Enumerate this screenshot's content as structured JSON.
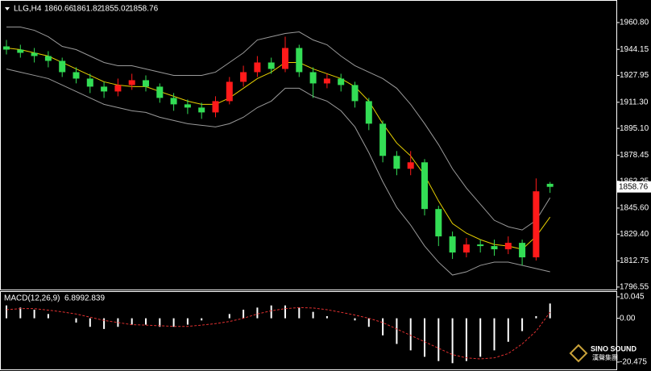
{
  "chart_data": [
    {
      "type": "candlestick",
      "title": "LLG,H4",
      "open": [
        1946,
        1944,
        1942,
        1940,
        1937,
        1930,
        1926,
        1921,
        1918,
        1922,
        1925,
        1921,
        1914,
        1910,
        1908,
        1905,
        1912,
        1924,
        1930,
        1936,
        1932,
        1945,
        1930,
        1923,
        1926,
        1922,
        1912,
        1898,
        1878,
        1870,
        1874,
        1845,
        1828,
        1818,
        1823,
        1822,
        1820,
        1824,
        1815,
        1860.66
      ],
      "high": [
        1950,
        1947,
        1945,
        1943,
        1939,
        1933,
        1929,
        1924,
        1926,
        1929,
        1928,
        1923,
        1917,
        1913,
        1911,
        1915,
        1927,
        1934,
        1940,
        1939,
        1952,
        1947,
        1933,
        1929,
        1929,
        1924,
        1914,
        1900,
        1881,
        1881,
        1876,
        1847,
        1831,
        1827,
        1826,
        1826,
        1828,
        1826,
        1864,
        1861.82
      ],
      "low": [
        1941,
        1939,
        1936,
        1933,
        1927,
        1923,
        1917,
        1914,
        1915,
        1919,
        1918,
        1911,
        1906,
        1904,
        1901,
        1902,
        1910,
        1921,
        1927,
        1929,
        1930,
        1927,
        1914,
        1920,
        1918,
        1908,
        1894,
        1874,
        1866,
        1866,
        1841,
        1822,
        1814,
        1815,
        1818,
        1816,
        1817,
        1810,
        1813,
        1855.02
      ],
      "close": [
        1944,
        1942,
        1940,
        1937,
        1930,
        1926,
        1921,
        1918,
        1922,
        1925,
        1921,
        1914,
        1910,
        1908,
        1905,
        1912,
        1924,
        1930,
        1936,
        1932,
        1945,
        1930,
        1923,
        1926,
        1922,
        1912,
        1898,
        1878,
        1870,
        1874,
        1845,
        1828,
        1818,
        1823,
        1822,
        1820,
        1824,
        1815,
        1856,
        1858.76
      ],
      "up_color": "#ff1a1a",
      "down_color": "#33dd55",
      "series": [
        {
          "color": "#9a9a9a",
          "values": [
            1958,
            1958,
            1956,
            1952,
            1946,
            1944,
            1940,
            1936,
            1934,
            1934,
            1932,
            1930,
            1928,
            1928,
            1928,
            1930,
            1936,
            1942,
            1950,
            1952,
            1954,
            1955,
            1950,
            1947,
            1940,
            1934,
            1930,
            1926,
            1920,
            1910,
            1898,
            1885,
            1870,
            1858,
            1848,
            1838,
            1834,
            1832,
            1838,
            1852
          ]
        },
        {
          "color": "#9a9a9a",
          "values": [
            1932,
            1930,
            1928,
            1926,
            1922,
            1918,
            1914,
            1910,
            1908,
            1906,
            1905,
            1902,
            1900,
            1898,
            1897,
            1896,
            1898,
            1902,
            1908,
            1912,
            1920,
            1920,
            1915,
            1912,
            1906,
            1896,
            1880,
            1862,
            1846,
            1835,
            1822,
            1812,
            1804,
            1806,
            1810,
            1812,
            1812,
            1810,
            1808,
            1806
          ]
        },
        {
          "color": "#e8d000",
          "values": [
            1945,
            1944,
            1942,
            1940,
            1936,
            1932,
            1928,
            1924,
            1922,
            1921,
            1921,
            1918,
            1915,
            1912,
            1910,
            1910,
            1914,
            1920,
            1926,
            1930,
            1936,
            1936,
            1932,
            1929,
            1926,
            1921,
            1912,
            1898,
            1886,
            1878,
            1866,
            1850,
            1836,
            1830,
            1826,
            1823,
            1822,
            1820,
            1828,
            1840
          ]
        }
      ],
      "ylim": [
        1795.5,
        1972.8
      ],
      "yticks": [
        {
          "value": 1960.8,
          "label": "1960.80"
        },
        1944.15,
        1927.95,
        {
          "value": 1911.3,
          "label": "1911.30"
        },
        {
          "value": 1895.1,
          "label": "1895.10"
        },
        1878.45,
        1862.25,
        {
          "value": 1845.6,
          "label": "1845.60"
        },
        {
          "value": 1829.4,
          "label": "1829.40"
        },
        1812.75,
        1796.55
      ]
    },
    {
      "type": "macd",
      "title": "MACD(12,26,9)",
      "values": [
        6,
        5,
        4,
        2,
        0,
        -2,
        -4,
        -5,
        -4,
        -3,
        -3,
        -4,
        -4,
        -3,
        -1,
        0,
        2,
        4,
        5,
        6,
        6,
        5,
        3,
        1,
        0,
        -1,
        -4,
        -8,
        -12,
        -15,
        -18,
        -20,
        -21,
        -20,
        -18,
        -15,
        -11,
        -6,
        1,
        6.899
      ],
      "color": "#ffffff",
      "series": [
        {
          "color": "#e03030",
          "values": [
            4,
            4.5,
            4.5,
            3.8,
            3,
            2,
            0.5,
            -1,
            -2,
            -3,
            -3.2,
            -3.5,
            -3.8,
            -3.8,
            -3.2,
            -2.5,
            -1.5,
            0,
            2,
            3.5,
            4.5,
            5,
            4.8,
            4,
            2.8,
            1.5,
            0,
            -2,
            -5,
            -8,
            -11,
            -14,
            -17,
            -18.5,
            -19,
            -18.5,
            -16.5,
            -12,
            -6,
            2.839
          ]
        }
      ],
      "ylim": [
        -23.9,
        12.3
      ],
      "yticks": [
        10.045,
        {
          "value": 0,
          "label": "0.00"
        },
        -20.475
      ]
    }
  ],
  "logo": {
    "name": "SINO SOUND",
    "subtitle": "漢聲集團"
  }
}
